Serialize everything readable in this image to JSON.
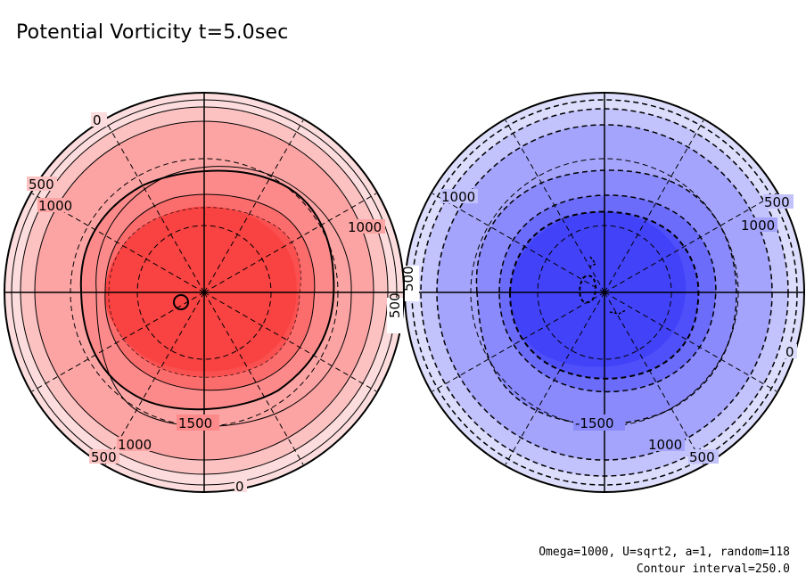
{
  "title": "Potential Vorticity t=5.0sec",
  "footer": {
    "params": "Omega=1000, U=sqrt2, a=1, random=118",
    "contour_interval": "Contour interval=250.0"
  },
  "colors": {
    "north_shades": [
      "#fcdcdc",
      "#fcc2c2",
      "#fca4a4",
      "#fc8a8a",
      "#fb6c6c",
      "#fa5050",
      "#f94242"
    ],
    "south_shades": [
      "#dcdcfc",
      "#c2c2fc",
      "#a4a4fc",
      "#8a8afc",
      "#6c6cfb",
      "#5050fa",
      "#4242f9"
    ]
  },
  "panels": {
    "north": {
      "labels": {
        "top_0": "0",
        "left_500": "500",
        "left_1000": "1000",
        "right_1000": "1000",
        "right_500": "500",
        "bottom_1500": "1500",
        "bottom_1000": "1000",
        "bottom_500": "500",
        "bottom_0": "0"
      }
    },
    "south": {
      "labels": {
        "left_500": "500",
        "left_1000": "1000",
        "right_500": "500",
        "right_1000": "1000",
        "right_0": "0",
        "bottom_m1500": "-1500",
        "bottom_1000": "1000",
        "bottom_500": "500"
      }
    }
  }
}
